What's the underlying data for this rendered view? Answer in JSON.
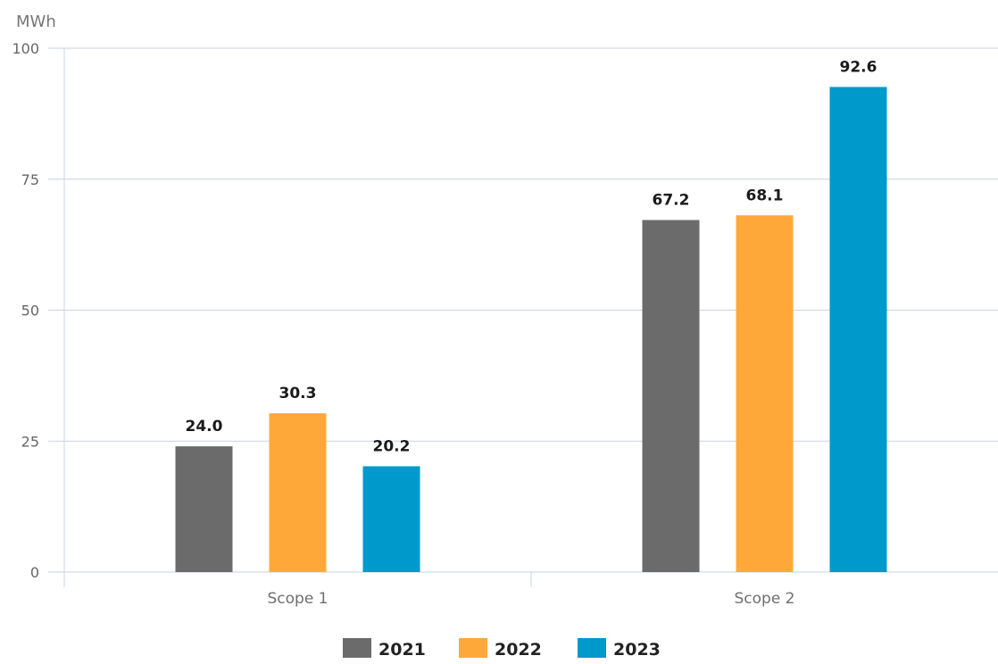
{
  "chart_data": {
    "type": "bar",
    "ylabel": "MWh",
    "ylim": [
      0,
      100
    ],
    "yticks": [
      0,
      25,
      50,
      75,
      100
    ],
    "categories": [
      "Scope 1",
      "Scope 2"
    ],
    "series": [
      {
        "name": "2021",
        "values": [
          24.0,
          67.2
        ],
        "color": "#6b6b6b"
      },
      {
        "name": "2022",
        "values": [
          30.3,
          68.1
        ],
        "color": "#ffa83a"
      },
      {
        "name": "2023",
        "values": [
          20.2,
          92.6
        ],
        "color": "#0099cc"
      }
    ],
    "data_labels": [
      [
        "24.0",
        "67.2"
      ],
      [
        "30.3",
        "68.1"
      ],
      [
        "20.2",
        "92.6"
      ]
    ],
    "grid": true,
    "legend_position": "bottom"
  }
}
